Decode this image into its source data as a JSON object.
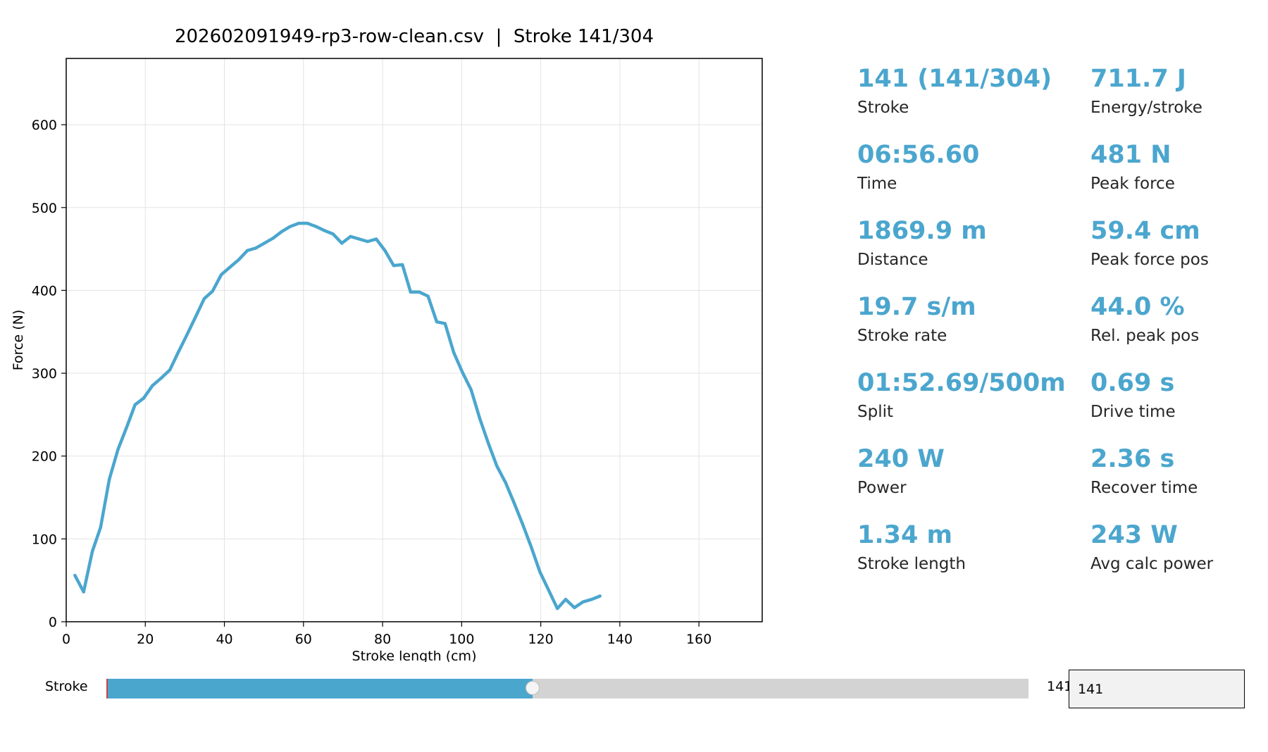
{
  "chart_data": {
    "type": "line",
    "title": "202602091949-rp3-row-clean.csv  |  Stroke 141/304",
    "xlabel": "Stroke length (cm)",
    "ylabel": "Force (N)",
    "xlim": [
      0,
      176
    ],
    "ylim": [
      0,
      680
    ],
    "xticks": [
      0,
      20,
      40,
      60,
      80,
      100,
      120,
      140,
      160
    ],
    "yticks": [
      0,
      100,
      200,
      300,
      400,
      500,
      600
    ],
    "grid": true,
    "line_color": "#4ba6ce",
    "series": [
      {
        "x": [
          2.2,
          4.4,
          6.6,
          8.7,
          10.9,
          13.1,
          15.3,
          17.4,
          19.6,
          21.8,
          24.0,
          26.2,
          28.3,
          30.5,
          32.7,
          34.9,
          37.0,
          39.2,
          41.4,
          43.6,
          45.8,
          47.9,
          50.1,
          52.3,
          54.5,
          56.6,
          58.8,
          61.0,
          63.2,
          65.4,
          67.5,
          69.7,
          71.9,
          74.1,
          76.2,
          78.4,
          80.6,
          82.8,
          85.0,
          87.1,
          89.3,
          91.5,
          93.7,
          95.8,
          98.0,
          100.2,
          102.4,
          104.6,
          106.7,
          108.9,
          111.1,
          113.3,
          115.4,
          117.6,
          119.8,
          122.0,
          124.2,
          126.3,
          128.5,
          130.7,
          132.9,
          135.0
        ],
        "y": [
          56,
          36,
          85,
          114,
          172,
          208,
          235,
          262,
          270,
          285,
          294,
          304,
          325,
          346,
          368,
          390,
          399,
          419,
          428,
          437,
          448,
          451,
          457,
          463,
          471,
          477,
          481,
          481,
          477,
          472,
          468,
          457,
          465,
          462,
          459,
          462,
          448,
          430,
          431,
          398,
          398,
          393,
          362,
          360,
          325,
          301,
          280,
          245,
          216,
          188,
          168,
          143,
          118,
          90,
          60,
          38,
          16,
          27,
          17,
          24,
          27,
          31
        ]
      }
    ]
  },
  "stats": [
    {
      "value": "141 (141/304)",
      "label": "Stroke"
    },
    {
      "value": "711.7 J",
      "label": "Energy/stroke"
    },
    {
      "value": "06:56.60",
      "label": "Time"
    },
    {
      "value": "481 N",
      "label": "Peak force"
    },
    {
      "value": "1869.9 m",
      "label": "Distance"
    },
    {
      "value": "59.4 cm",
      "label": "Peak force pos"
    },
    {
      "value": "19.7 s/m",
      "label": "Stroke rate"
    },
    {
      "value": "44.0 %",
      "label": "Rel. peak pos"
    },
    {
      "value": "01:52.69/500m",
      "label": "Split"
    },
    {
      "value": "0.69 s",
      "label": "Drive time"
    },
    {
      "value": "240 W",
      "label": "Power"
    },
    {
      "value": "2.36 s",
      "label": "Recover time"
    },
    {
      "value": "1.34 m",
      "label": "Stroke length"
    },
    {
      "value": "243 W",
      "label": "Avg calc power"
    }
  ],
  "slider": {
    "label": "Stroke",
    "min": 1,
    "max": 304,
    "value": 141,
    "readout": "141",
    "input_value": "141"
  }
}
